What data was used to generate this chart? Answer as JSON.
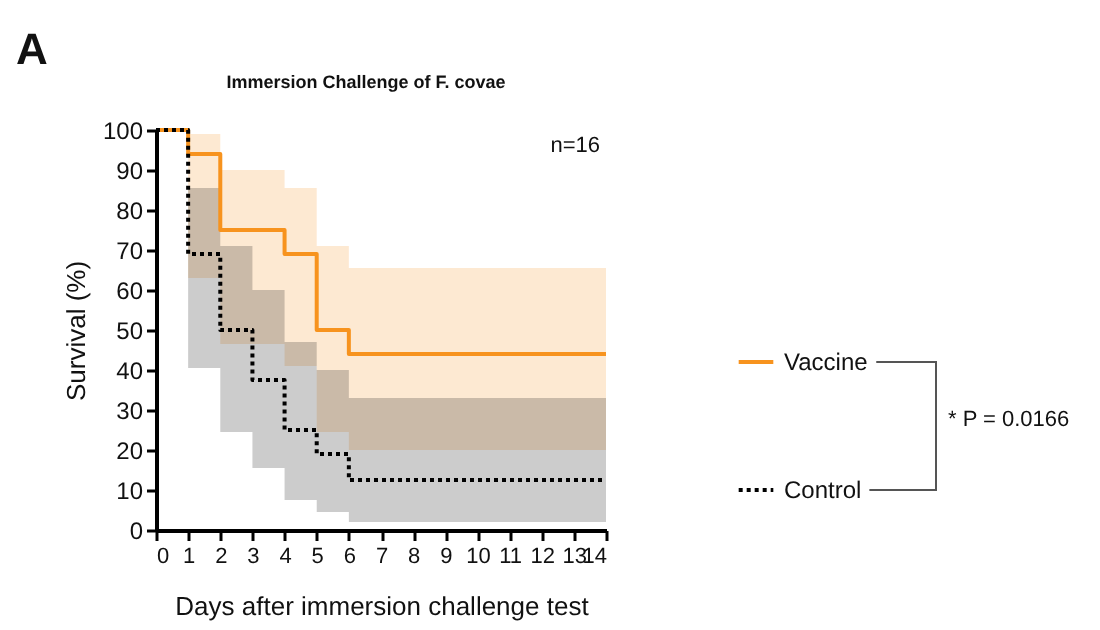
{
  "chart_data": {
    "type": "step",
    "title": "Immersion Challenge of F. covae",
    "xlabel": "Days after immersion challenge test",
    "ylabel": "Survival (%)",
    "x": [
      0,
      1,
      2,
      3,
      4,
      5,
      6,
      14
    ],
    "series": [
      {
        "name": "Vaccine",
        "color": "#f7931e",
        "line_style": "solid",
        "values": [
          100,
          94,
          75,
          75,
          69,
          50,
          44,
          44
        ],
        "upper": [
          100,
          99,
          90,
          90,
          85.5,
          71,
          65.5,
          65.5
        ],
        "lower": [
          100,
          63,
          46.5,
          46.5,
          41,
          24.5,
          20,
          20
        ]
      },
      {
        "name": "Control",
        "color": "#000000",
        "line_style": "dotted",
        "values": [
          100,
          69,
          50,
          37.5,
          25,
          19,
          12.5,
          12.5
        ],
        "upper": [
          100,
          85.5,
          71,
          60,
          47,
          40,
          33,
          33
        ],
        "lower": [
          100,
          40.5,
          24.5,
          15.5,
          7.5,
          4.5,
          2,
          2
        ]
      }
    ],
    "xlim": [
      0,
      14
    ],
    "xticks": [
      0,
      1,
      2,
      3,
      4,
      5,
      6,
      7,
      8,
      9,
      10,
      11,
      12,
      13,
      14
    ],
    "ylim": [
      0,
      100
    ],
    "yticks": [
      0,
      10,
      20,
      30,
      40,
      50,
      60,
      70,
      80,
      90,
      100
    ],
    "grid": false,
    "legend": "right",
    "marker": "none",
    "annotations": [
      "A",
      "n=16",
      "* P = 0.0166"
    ]
  }
}
